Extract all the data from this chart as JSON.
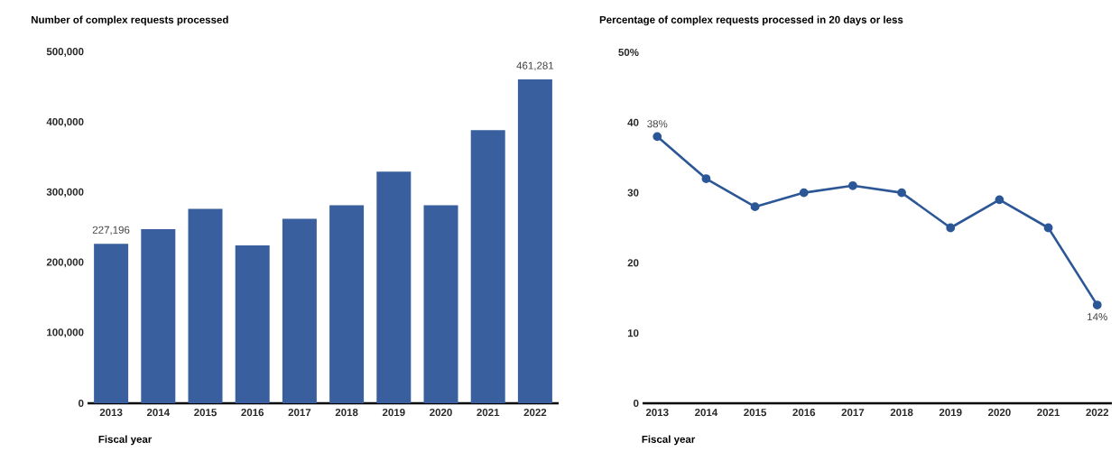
{
  "chart_data": [
    {
      "type": "bar",
      "title": "Number of complex requests processed",
      "xlabel": "Fiscal year",
      "categories": [
        "2013",
        "2014",
        "2015",
        "2016",
        "2017",
        "2018",
        "2019",
        "2020",
        "2021",
        "2022"
      ],
      "values": [
        227196,
        248000,
        277000,
        225000,
        263000,
        282000,
        330000,
        282000,
        389000,
        461281
      ],
      "value_labels": [
        "227,196",
        null,
        null,
        null,
        null,
        null,
        null,
        null,
        null,
        "461,281"
      ],
      "color": "#3a5f9e",
      "ylim": [
        0,
        500000
      ],
      "yticks": [
        0,
        {
          "value": 100000,
          "label": "100,000"
        },
        {
          "value": 200000,
          "label": "200,000"
        },
        {
          "value": 300000,
          "label": "300,000"
        },
        {
          "value": 400000,
          "label": "400,000"
        },
        {
          "value": 500000,
          "label": "500,000"
        }
      ],
      "grid": false
    },
    {
      "type": "line",
      "title": "Percentage of complex requests processed in 20 days or less",
      "xlabel": "Fiscal year",
      "categories": [
        "2013",
        "2014",
        "2015",
        "2016",
        "2017",
        "2018",
        "2019",
        "2020",
        "2021",
        "2022"
      ],
      "values": [
        38,
        32,
        28,
        30,
        31,
        30,
        25,
        29,
        25,
        14
      ],
      "value_labels": [
        "38%",
        null,
        null,
        null,
        null,
        null,
        null,
        null,
        null,
        "14%"
      ],
      "color": "#2c5797",
      "marker": "circle",
      "line_style": "solid",
      "ylim": [
        0,
        50
      ],
      "yticks": [
        0,
        10,
        20,
        30,
        40,
        {
          "value": 50,
          "label": "50%"
        }
      ],
      "grid": false
    }
  ]
}
